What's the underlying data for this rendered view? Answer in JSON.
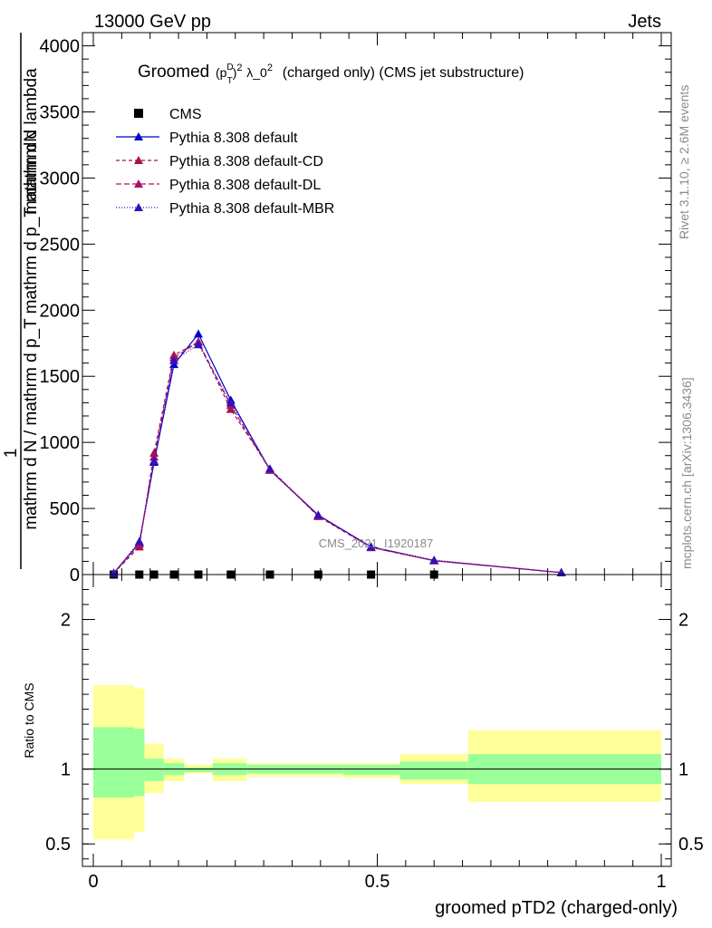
{
  "header": {
    "left": "13000 GeV pp",
    "right": "Jets"
  },
  "side_labels": {
    "rivet": "Rivet 3.1.10, ≥ 2.6M events",
    "mcplots": "mcplots.cern.ch [arXiv:1306.3436]"
  },
  "watermark": "CMS_2021_I1920187",
  "colors": {
    "cms": "#000000",
    "default": "#0000cc",
    "default_cd": "#aa1144",
    "default_dl": "#aa1166",
    "default_mbr": "#3311bb",
    "band_inner": "#99ff99",
    "band_outer": "#ffff99"
  },
  "chart_data": [
    {
      "type": "line",
      "title": "Groomed (p_T^D)^2 λ_0^2 (charged only) (CMS jet substructure)",
      "title_parts": {
        "pre": "Groomed",
        "post": "λ_0",
        "tail": "(charged only) (CMS jet substructure)"
      },
      "ylabel_parts": {
        "one": "1",
        "num": "mathrm dN",
        "den": "mathrm d N / mathrm d p_T mathrm d p_T mathrm d lambda"
      },
      "xlim": [
        0,
        1
      ],
      "ylim": [
        0,
        4100
      ],
      "x_ticks": [
        0,
        0.5,
        1
      ],
      "x_tick_labels": [
        "0",
        "0.5",
        "1"
      ],
      "y_ticks": [
        0,
        500,
        1000,
        1500,
        2000,
        2500,
        3000,
        3500,
        4000
      ],
      "y_tick_labels": [
        "0",
        "500",
        "1000",
        "1500",
        "2000",
        "2500",
        "3000",
        "3500",
        "4000"
      ],
      "legend_position": "top-left",
      "series": [
        {
          "name": "CMS",
          "key": "cms",
          "marker": "square",
          "x": [
            0.036,
            0.081,
            0.107,
            0.142,
            0.185,
            0.242,
            0.311,
            0.396,
            0.489,
            0.6
          ],
          "y": [
            0,
            0,
            0,
            0,
            0,
            0,
            0,
            0,
            0,
            0
          ]
        },
        {
          "name": "Pythia 8.308 default",
          "key": "default",
          "marker": "triangle",
          "dash": "",
          "x": [
            0.036,
            0.081,
            0.107,
            0.142,
            0.185,
            0.242,
            0.311,
            0.396,
            0.489,
            0.6,
            0.824
          ],
          "y": [
            10,
            240,
            850,
            1590,
            1820,
            1320,
            790,
            450,
            210,
            105,
            15
          ]
        },
        {
          "name": "Pythia 8.308 default-CD",
          "key": "default_cd",
          "marker": "triangle",
          "dash": "4,3",
          "x": [
            0.036,
            0.081,
            0.107,
            0.142,
            0.185,
            0.242,
            0.311,
            0.396,
            0.489,
            0.6,
            0.824
          ],
          "y": [
            10,
            210,
            920,
            1660,
            1760,
            1250,
            800,
            440,
            205,
            105,
            15
          ]
        },
        {
          "name": "Pythia 8.308 default-DL",
          "key": "default_dl",
          "marker": "triangle",
          "dash": "6,3",
          "x": [
            0.036,
            0.081,
            0.107,
            0.142,
            0.185,
            0.242,
            0.311,
            0.396,
            0.489,
            0.6,
            0.824
          ],
          "y": [
            10,
            230,
            890,
            1640,
            1760,
            1280,
            790,
            445,
            205,
            105,
            15
          ]
        },
        {
          "name": "Pythia 8.308 default-MBR",
          "key": "default_mbr",
          "marker": "triangle",
          "dash": "1,2",
          "x": [
            0.036,
            0.081,
            0.107,
            0.142,
            0.185,
            0.242,
            0.311,
            0.396,
            0.489,
            0.6,
            0.824
          ],
          "y": [
            10,
            250,
            860,
            1620,
            1740,
            1300,
            800,
            450,
            210,
            110,
            15
          ]
        }
      ]
    },
    {
      "type": "area",
      "ylabel": "Ratio to CMS",
      "xlabel": "groomed pTD2 (charged-only)",
      "xlim": [
        0,
        1
      ],
      "ylim": [
        0.35,
        2.3
      ],
      "y_ticks": [
        0.5,
        1,
        2
      ],
      "y_tick_labels": [
        "0.5",
        "1",
        "2"
      ],
      "reference_line": 1,
      "bins": [
        {
          "x0": 0.0,
          "x1": 0.072,
          "inner": [
            0.81,
            1.28
          ],
          "outer": [
            0.53,
            1.56
          ]
        },
        {
          "x0": 0.072,
          "x1": 0.09,
          "inner": [
            0.82,
            1.27
          ],
          "outer": [
            0.58,
            1.54
          ]
        },
        {
          "x0": 0.09,
          "x1": 0.124,
          "inner": [
            0.92,
            1.07
          ],
          "outer": [
            0.84,
            1.17
          ]
        },
        {
          "x0": 0.124,
          "x1": 0.16,
          "inner": [
            0.96,
            1.04
          ],
          "outer": [
            0.92,
            1.07
          ]
        },
        {
          "x0": 0.16,
          "x1": 0.21,
          "inner": [
            0.98,
            1.01
          ],
          "outer": [
            0.97,
            1.03
          ]
        },
        {
          "x0": 0.21,
          "x1": 0.27,
          "inner": [
            0.96,
            1.04
          ],
          "outer": [
            0.92,
            1.07
          ]
        },
        {
          "x0": 0.27,
          "x1": 0.35,
          "inner": [
            0.97,
            1.03
          ],
          "outer": [
            0.95,
            1.04
          ]
        },
        {
          "x0": 0.35,
          "x1": 0.44,
          "inner": [
            0.97,
            1.03
          ],
          "outer": [
            0.95,
            1.04
          ]
        },
        {
          "x0": 0.44,
          "x1": 0.54,
          "inner": [
            0.96,
            1.03
          ],
          "outer": [
            0.94,
            1.04
          ]
        },
        {
          "x0": 0.54,
          "x1": 0.66,
          "inner": [
            0.93,
            1.05
          ],
          "outer": [
            0.9,
            1.1
          ]
        },
        {
          "x0": 0.66,
          "x1": 1.0,
          "inner": [
            0.9,
            1.1
          ],
          "outer": [
            0.78,
            1.26
          ]
        }
      ]
    }
  ]
}
